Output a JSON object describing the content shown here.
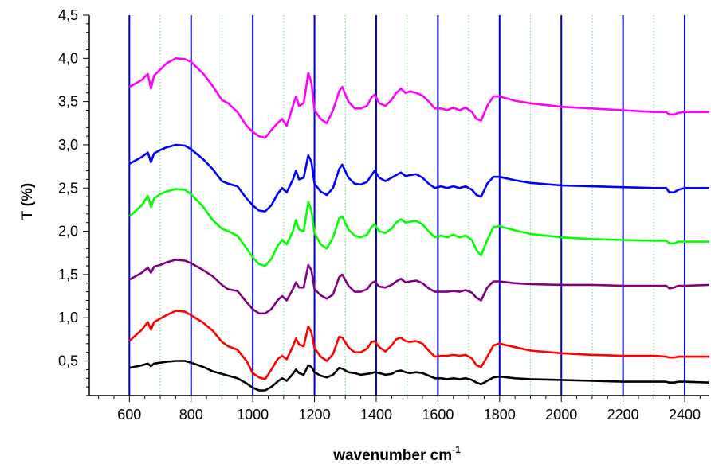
{
  "chart_data": {
    "type": "line",
    "title": "",
    "xlabel_main": "wavenumber cm",
    "xlabel_sup": "-1",
    "ylabel": "T (%)",
    "xlim": [
      470,
      2480
    ],
    "ylim": [
      0.1,
      4.5
    ],
    "x_ticks": [
      "600",
      "800",
      "1000",
      "1200",
      "1400",
      "1600",
      "1800",
      "2000",
      "2200",
      "2400"
    ],
    "y_ticks": [
      "0,5",
      "1,0",
      "1,5",
      "2,0",
      "2,5",
      "3,0",
      "3,5",
      "4,0",
      "4,5"
    ],
    "major_vertical_gridlines": [
      600,
      800,
      1000,
      1200,
      1400,
      1600,
      1800,
      2000,
      2200,
      2400
    ],
    "minor_vertical_gridlines": [
      700,
      900,
      1100,
      1300,
      1500,
      1700,
      1900,
      2100,
      2300
    ],
    "major_grid_color": "#0000cc",
    "minor_grid_color": "#66dd66",
    "x": [
      600,
      640,
      660,
      670,
      680,
      700,
      720,
      750,
      780,
      800,
      840,
      870,
      900,
      920,
      950,
      980,
      1000,
      1020,
      1040,
      1060,
      1080,
      1095,
      1110,
      1130,
      1140,
      1150,
      1165,
      1180,
      1190,
      1200,
      1220,
      1240,
      1260,
      1280,
      1290,
      1310,
      1330,
      1350,
      1370,
      1385,
      1395,
      1410,
      1430,
      1450,
      1465,
      1480,
      1495,
      1510,
      1530,
      1550,
      1570,
      1590,
      1610,
      1630,
      1650,
      1670,
      1690,
      1710,
      1725,
      1740,
      1760,
      1780,
      1800,
      1850,
      1900,
      2000,
      2100,
      2200,
      2300,
      2340,
      2350,
      2365,
      2380,
      2400,
      2480
    ],
    "series": [
      {
        "color": "#000000",
        "values": [
          0.42,
          0.45,
          0.47,
          0.44,
          0.47,
          0.48,
          0.49,
          0.5,
          0.5,
          0.48,
          0.43,
          0.38,
          0.35,
          0.33,
          0.3,
          0.24,
          0.19,
          0.16,
          0.16,
          0.2,
          0.26,
          0.3,
          0.27,
          0.35,
          0.4,
          0.36,
          0.34,
          0.45,
          0.43,
          0.37,
          0.33,
          0.31,
          0.34,
          0.42,
          0.41,
          0.37,
          0.36,
          0.34,
          0.35,
          0.36,
          0.37,
          0.36,
          0.34,
          0.35,
          0.38,
          0.39,
          0.37,
          0.36,
          0.37,
          0.36,
          0.33,
          0.3,
          0.3,
          0.29,
          0.3,
          0.29,
          0.3,
          0.28,
          0.25,
          0.23,
          0.27,
          0.31,
          0.32,
          0.3,
          0.29,
          0.28,
          0.27,
          0.26,
          0.26,
          0.26,
          0.25,
          0.25,
          0.26,
          0.26,
          0.25
        ]
      },
      {
        "color": "#ff0000",
        "values": [
          0.73,
          0.86,
          0.95,
          0.86,
          0.95,
          0.99,
          1.03,
          1.08,
          1.07,
          1.03,
          0.94,
          0.85,
          0.72,
          0.67,
          0.63,
          0.5,
          0.36,
          0.31,
          0.29,
          0.4,
          0.52,
          0.56,
          0.52,
          0.67,
          0.76,
          0.69,
          0.67,
          0.9,
          0.83,
          0.65,
          0.55,
          0.5,
          0.58,
          0.78,
          0.77,
          0.66,
          0.6,
          0.6,
          0.64,
          0.72,
          0.73,
          0.66,
          0.61,
          0.68,
          0.75,
          0.77,
          0.73,
          0.72,
          0.73,
          0.7,
          0.62,
          0.55,
          0.56,
          0.56,
          0.57,
          0.56,
          0.57,
          0.53,
          0.45,
          0.43,
          0.55,
          0.68,
          0.7,
          0.66,
          0.62,
          0.59,
          0.57,
          0.56,
          0.56,
          0.55,
          0.54,
          0.54,
          0.55,
          0.55,
          0.55
        ]
      },
      {
        "color": "#800080",
        "values": [
          1.44,
          1.52,
          1.58,
          1.52,
          1.59,
          1.61,
          1.64,
          1.67,
          1.66,
          1.63,
          1.55,
          1.48,
          1.38,
          1.33,
          1.31,
          1.18,
          1.1,
          1.05,
          1.05,
          1.1,
          1.2,
          1.25,
          1.2,
          1.33,
          1.41,
          1.35,
          1.35,
          1.61,
          1.55,
          1.33,
          1.26,
          1.22,
          1.27,
          1.47,
          1.5,
          1.37,
          1.3,
          1.3,
          1.33,
          1.4,
          1.42,
          1.36,
          1.35,
          1.38,
          1.42,
          1.45,
          1.41,
          1.42,
          1.43,
          1.4,
          1.34,
          1.3,
          1.3,
          1.3,
          1.31,
          1.3,
          1.32,
          1.29,
          1.23,
          1.2,
          1.35,
          1.42,
          1.42,
          1.4,
          1.39,
          1.38,
          1.38,
          1.37,
          1.37,
          1.37,
          1.34,
          1.35,
          1.37,
          1.37,
          1.38
        ]
      },
      {
        "color": "#00ff00",
        "values": [
          2.17,
          2.3,
          2.41,
          2.28,
          2.38,
          2.43,
          2.46,
          2.49,
          2.48,
          2.43,
          2.28,
          2.13,
          2.03,
          2.0,
          1.95,
          1.8,
          1.7,
          1.62,
          1.6,
          1.68,
          1.83,
          1.9,
          1.85,
          2.0,
          2.13,
          2.02,
          2.0,
          2.34,
          2.24,
          1.98,
          1.85,
          1.8,
          1.93,
          2.15,
          2.17,
          2.02,
          1.95,
          1.93,
          1.96,
          2.05,
          2.08,
          2.0,
          1.98,
          2.03,
          2.1,
          2.14,
          2.1,
          2.11,
          2.12,
          2.08,
          2.0,
          1.93,
          1.95,
          1.93,
          1.96,
          1.93,
          1.95,
          1.9,
          1.78,
          1.72,
          1.9,
          2.05,
          2.06,
          2.01,
          1.97,
          1.93,
          1.91,
          1.9,
          1.89,
          1.89,
          1.86,
          1.86,
          1.88,
          1.88,
          1.88
        ]
      },
      {
        "color": "#0000ff",
        "values": [
          2.78,
          2.86,
          2.91,
          2.8,
          2.9,
          2.94,
          2.97,
          3.0,
          2.99,
          2.95,
          2.83,
          2.72,
          2.58,
          2.55,
          2.52,
          2.38,
          2.3,
          2.24,
          2.23,
          2.3,
          2.43,
          2.5,
          2.45,
          2.6,
          2.7,
          2.6,
          2.62,
          2.88,
          2.8,
          2.55,
          2.46,
          2.42,
          2.5,
          2.72,
          2.77,
          2.62,
          2.55,
          2.54,
          2.57,
          2.65,
          2.7,
          2.62,
          2.58,
          2.62,
          2.65,
          2.68,
          2.64,
          2.65,
          2.66,
          2.62,
          2.55,
          2.5,
          2.52,
          2.5,
          2.52,
          2.5,
          2.52,
          2.48,
          2.42,
          2.4,
          2.55,
          2.63,
          2.63,
          2.59,
          2.56,
          2.53,
          2.52,
          2.51,
          2.5,
          2.5,
          2.45,
          2.45,
          2.48,
          2.5,
          2.5
        ]
      },
      {
        "color": "#ff00ff",
        "values": [
          3.67,
          3.75,
          3.82,
          3.65,
          3.8,
          3.87,
          3.94,
          4.0,
          3.99,
          3.96,
          3.82,
          3.68,
          3.52,
          3.48,
          3.38,
          3.22,
          3.15,
          3.1,
          3.08,
          3.17,
          3.25,
          3.3,
          3.22,
          3.45,
          3.56,
          3.45,
          3.48,
          3.83,
          3.72,
          3.4,
          3.3,
          3.25,
          3.4,
          3.62,
          3.67,
          3.5,
          3.42,
          3.42,
          3.45,
          3.55,
          3.58,
          3.48,
          3.45,
          3.52,
          3.6,
          3.65,
          3.6,
          3.62,
          3.6,
          3.57,
          3.5,
          3.42,
          3.42,
          3.4,
          3.43,
          3.4,
          3.43,
          3.38,
          3.3,
          3.28,
          3.45,
          3.56,
          3.56,
          3.51,
          3.48,
          3.44,
          3.42,
          3.4,
          3.38,
          3.38,
          3.35,
          3.35,
          3.37,
          3.38,
          3.38
        ]
      }
    ]
  }
}
